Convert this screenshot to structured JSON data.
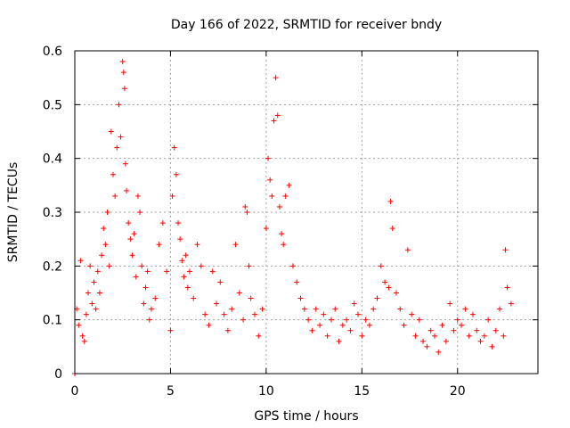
{
  "chart_data": {
    "type": "scatter",
    "title": "Day 166 of 2022, SRMTID for receiver bndy",
    "xlabel": "GPS time / hours",
    "ylabel": "SRMTID / TECUs",
    "xlim": [
      0,
      24.2
    ],
    "ylim": [
      0,
      0.6
    ],
    "xticks": [
      0,
      5,
      10,
      15,
      20
    ],
    "yticks": [
      0,
      0.1,
      0.2,
      0.3,
      0.4,
      0.5,
      0.6
    ],
    "xtick_labels": [
      "0",
      "5",
      "10",
      "15",
      "20"
    ],
    "ytick_labels": [
      "0",
      "0.1",
      "0.2",
      "0.3",
      "0.4",
      "0.5",
      "0.6"
    ],
    "grid": true,
    "marker": "+",
    "series": [
      {
        "name": "SRMTID",
        "color": "#ff0000",
        "x": [
          0.0,
          0.1,
          0.2,
          0.3,
          0.4,
          0.5,
          0.6,
          0.7,
          0.8,
          0.9,
          1.0,
          1.1,
          1.2,
          1.3,
          1.4,
          1.5,
          1.6,
          1.7,
          1.8,
          1.9,
          2.0,
          2.1,
          2.2,
          2.3,
          2.4,
          2.5,
          2.55,
          2.6,
          2.65,
          2.7,
          2.8,
          2.9,
          3.0,
          3.1,
          3.2,
          3.3,
          3.4,
          3.5,
          3.6,
          3.7,
          3.8,
          3.9,
          4.0,
          4.2,
          4.4,
          4.6,
          4.8,
          5.0,
          5.1,
          5.2,
          5.3,
          5.4,
          5.5,
          5.6,
          5.7,
          5.8,
          5.9,
          6.0,
          6.2,
          6.4,
          6.6,
          6.8,
          7.0,
          7.2,
          7.4,
          7.6,
          7.8,
          8.0,
          8.2,
          8.4,
          8.6,
          8.8,
          8.9,
          9.0,
          9.1,
          9.2,
          9.4,
          9.6,
          9.8,
          10.0,
          10.1,
          10.2,
          10.3,
          10.4,
          10.5,
          10.6,
          10.7,
          10.8,
          10.9,
          11.0,
          11.2,
          11.4,
          11.6,
          11.8,
          12.0,
          12.2,
          12.4,
          12.6,
          12.8,
          13.0,
          13.2,
          13.4,
          13.6,
          13.8,
          14.0,
          14.2,
          14.4,
          14.6,
          14.8,
          15.0,
          15.2,
          15.4,
          15.6,
          15.8,
          16.0,
          16.2,
          16.4,
          16.5,
          16.6,
          16.8,
          17.0,
          17.2,
          17.4,
          17.6,
          17.8,
          18.0,
          18.2,
          18.4,
          18.6,
          18.8,
          19.0,
          19.2,
          19.4,
          19.6,
          19.8,
          20.0,
          20.2,
          20.4,
          20.6,
          20.8,
          21.0,
          21.2,
          21.4,
          21.6,
          21.8,
          22.0,
          22.2,
          22.4,
          22.5,
          22.6,
          22.8
        ],
        "y": [
          0.0,
          0.12,
          0.09,
          0.21,
          0.07,
          0.06,
          0.11,
          0.15,
          0.2,
          0.13,
          0.17,
          0.12,
          0.19,
          0.15,
          0.22,
          0.27,
          0.24,
          0.3,
          0.2,
          0.45,
          0.37,
          0.33,
          0.42,
          0.5,
          0.44,
          0.58,
          0.56,
          0.53,
          0.39,
          0.34,
          0.28,
          0.25,
          0.22,
          0.26,
          0.18,
          0.33,
          0.3,
          0.2,
          0.13,
          0.16,
          0.19,
          0.1,
          0.12,
          0.14,
          0.24,
          0.28,
          0.19,
          0.08,
          0.33,
          0.42,
          0.37,
          0.28,
          0.25,
          0.21,
          0.18,
          0.22,
          0.16,
          0.19,
          0.14,
          0.24,
          0.2,
          0.11,
          0.09,
          0.19,
          0.13,
          0.17,
          0.11,
          0.08,
          0.12,
          0.24,
          0.15,
          0.1,
          0.31,
          0.3,
          0.2,
          0.14,
          0.11,
          0.07,
          0.12,
          0.27,
          0.4,
          0.36,
          0.33,
          0.47,
          0.55,
          0.48,
          0.31,
          0.26,
          0.24,
          0.33,
          0.35,
          0.2,
          0.17,
          0.14,
          0.12,
          0.1,
          0.08,
          0.12,
          0.09,
          0.11,
          0.07,
          0.1,
          0.12,
          0.06,
          0.09,
          0.1,
          0.08,
          0.13,
          0.11,
          0.07,
          0.1,
          0.09,
          0.12,
          0.14,
          0.2,
          0.17,
          0.16,
          0.32,
          0.27,
          0.15,
          0.12,
          0.09,
          0.23,
          0.11,
          0.07,
          0.1,
          0.06,
          0.05,
          0.08,
          0.07,
          0.04,
          0.09,
          0.06,
          0.13,
          0.08,
          0.1,
          0.09,
          0.12,
          0.07,
          0.11,
          0.08,
          0.06,
          0.07,
          0.1,
          0.05,
          0.08,
          0.12,
          0.07,
          0.23,
          0.16,
          0.13
        ]
      }
    ]
  }
}
